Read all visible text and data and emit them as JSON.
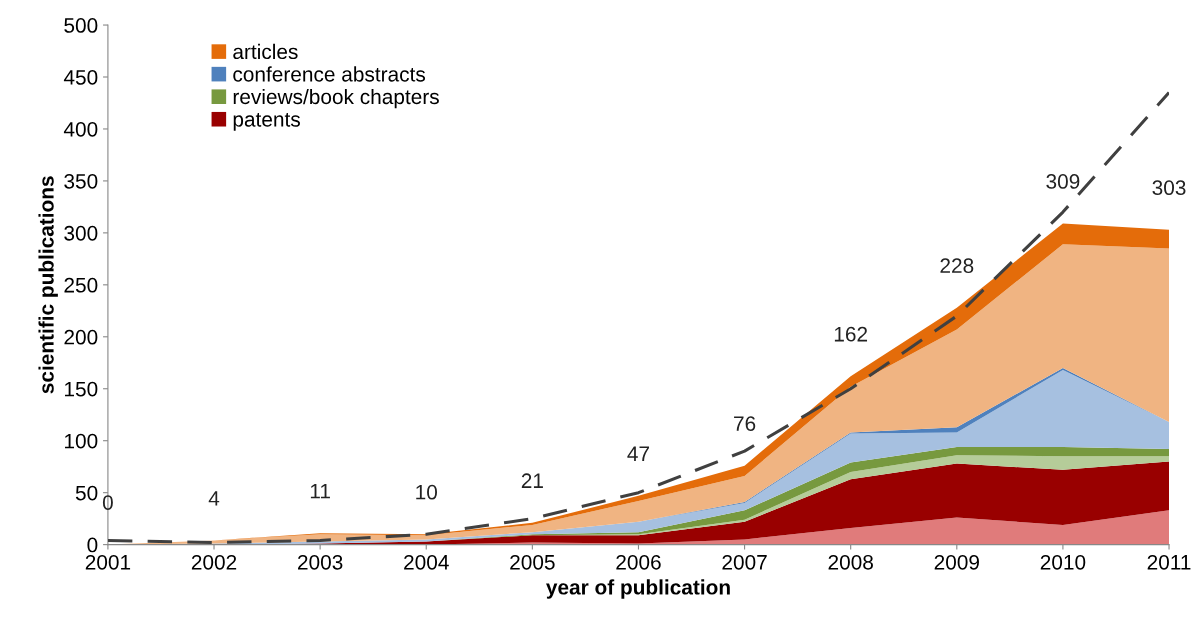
{
  "chart_data": {
    "type": "area",
    "stacked": true,
    "xlabel": "year of publication",
    "ylabel": "scientific publications",
    "x": [
      2001,
      2002,
      2003,
      2004,
      2005,
      2006,
      2007,
      2008,
      2009,
      2010,
      2011
    ],
    "xlim": [
      2001,
      2011
    ],
    "xticks": [
      2001,
      2002,
      2003,
      2004,
      2005,
      2006,
      2007,
      2008,
      2009,
      2010,
      2011
    ],
    "ylim": [
      0,
      500
    ],
    "yticks": [
      0,
      50,
      100,
      150,
      200,
      250,
      300,
      350,
      400,
      450,
      500
    ],
    "grid": false,
    "legend": "top left",
    "series": [
      {
        "color": "#e07b7b",
        "values": [
          0,
          0,
          0,
          0,
          2,
          1,
          5,
          16,
          26,
          19,
          33
        ]
      },
      {
        "name": "patents",
        "color": "#990000",
        "values": [
          0,
          0,
          1,
          3,
          7,
          8,
          17,
          47,
          52,
          53,
          47
        ]
      },
      {
        "color": "#b5cc99",
        "values": [
          0,
          0,
          0,
          0,
          0,
          1,
          2,
          7,
          8,
          13,
          5
        ]
      },
      {
        "name": "reviews/book chapters",
        "color": "#77993f",
        "values": [
          0,
          0,
          0,
          0,
          1,
          2,
          9,
          9,
          8,
          9,
          7
        ]
      },
      {
        "color": "#a6c0e0",
        "values": [
          0,
          1,
          2,
          2,
          2,
          10,
          7,
          28,
          14,
          74,
          26
        ]
      },
      {
        "name": "conference abstracts",
        "color": "#4f81bd",
        "values": [
          0,
          0,
          0,
          0,
          0,
          0,
          1,
          1,
          5,
          2,
          0
        ]
      },
      {
        "color": "#f0b482",
        "values": [
          0,
          3,
          7,
          4,
          7,
          20,
          25,
          44,
          94,
          119,
          167
        ]
      },
      {
        "name": "articles",
        "color": "#e46c0a",
        "values": [
          0,
          0,
          1,
          1,
          2,
          5,
          10,
          10,
          21,
          20,
          18
        ]
      },
      {
        "type": "line",
        "line_style": "dashed",
        "color": "#404040",
        "x": [
          2001,
          2002,
          2003,
          2004,
          2005,
          2006,
          2007,
          2008,
          2009,
          2010,
          2011
        ],
        "values": [
          4,
          2,
          4,
          10,
          25,
          50,
          90,
          150,
          220,
          320,
          435
        ]
      }
    ],
    "totals": [
      "0",
      "4",
      "11",
      "10",
      "21",
      "47",
      "76",
      "162",
      "228",
      "309",
      "303"
    ]
  }
}
